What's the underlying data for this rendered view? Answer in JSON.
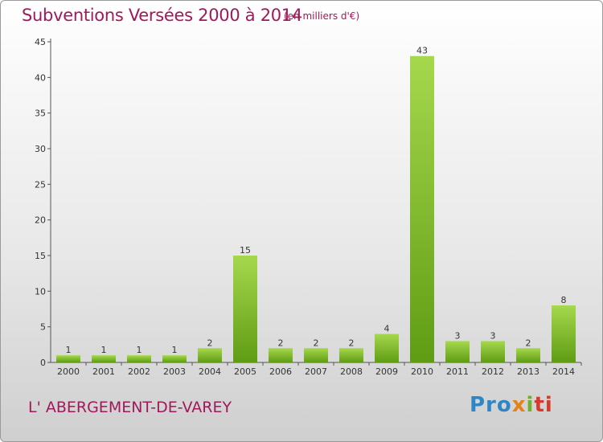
{
  "title": "Subventions Versées 2000 à 2014",
  "subtitle": "(en milliers d'€)",
  "place": "L' ABERGEMENT-DE-VAREY",
  "logo": [
    "Pro",
    "x",
    "i",
    "ti"
  ],
  "colors": {
    "title": "#a0195a",
    "bar_light": "#a6d84d",
    "bar_dark": "#5f9c14",
    "axis": "#555555"
  },
  "chart_data": {
    "type": "bar",
    "categories": [
      "2000",
      "2001",
      "2002",
      "2003",
      "2004",
      "2005",
      "2006",
      "2007",
      "2008",
      "2009",
      "2010",
      "2011",
      "2012",
      "2013",
      "2014"
    ],
    "values": [
      1,
      1,
      1,
      1,
      2,
      15,
      2,
      2,
      2,
      4,
      43,
      3,
      3,
      2,
      8
    ],
    "data_labels": [
      "1",
      "1",
      "1",
      "1",
      "2",
      "15",
      "2",
      "2",
      "2",
      "4",
      "43",
      "3",
      "3",
      "2",
      "8"
    ],
    "title": "Subventions Versées 2000 à 2014",
    "xlabel": "",
    "ylabel": "",
    "ylim": [
      0,
      45
    ],
    "yticks": [
      0,
      5,
      10,
      15,
      20,
      25,
      30,
      35,
      40,
      45
    ],
    "grid": false,
    "legend": "none"
  }
}
